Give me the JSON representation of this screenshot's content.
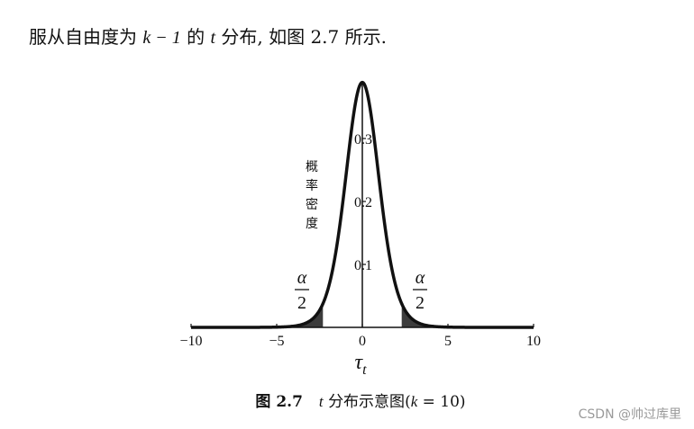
{
  "intro": {
    "part1": "服从自由度为 ",
    "expr": "k − 1",
    "part2": " 的 ",
    "t": "t",
    "part3": " 分布, 如图 2.7 所示."
  },
  "caption": {
    "figure_no": "图 2.7",
    "t": "t",
    "text": "分布示意图",
    "cond_open": "(",
    "k": "k",
    "cond_rest": " = 10)"
  },
  "watermark": "CSDN @帅过库里",
  "chart_data": {
    "type": "area",
    "distribution": "t",
    "k": 10,
    "x_axis": {
      "label": "τ",
      "label_subscript": "t",
      "ticks": [
        -10,
        -5,
        0,
        5,
        10
      ],
      "tick_labels": [
        "−10",
        "−5",
        "0",
        "5",
        "10"
      ],
      "range": [
        -10,
        10
      ]
    },
    "y_axis": {
      "label_chars": [
        "概",
        "率",
        "密",
        "度"
      ],
      "ticks": [
        0.1,
        0.2,
        0.3
      ],
      "tick_labels": [
        "0.1",
        "0.2",
        "0.3"
      ],
      "range": [
        0,
        0.4
      ]
    },
    "shaded_tails": {
      "left": [
        -10,
        -2.3
      ],
      "right": [
        2.3,
        10
      ],
      "label_numerator": "α",
      "label_denominator": "2"
    },
    "grid": false,
    "colors": {
      "curve": "#111111",
      "tail_fill": "#3c3c3c"
    }
  }
}
